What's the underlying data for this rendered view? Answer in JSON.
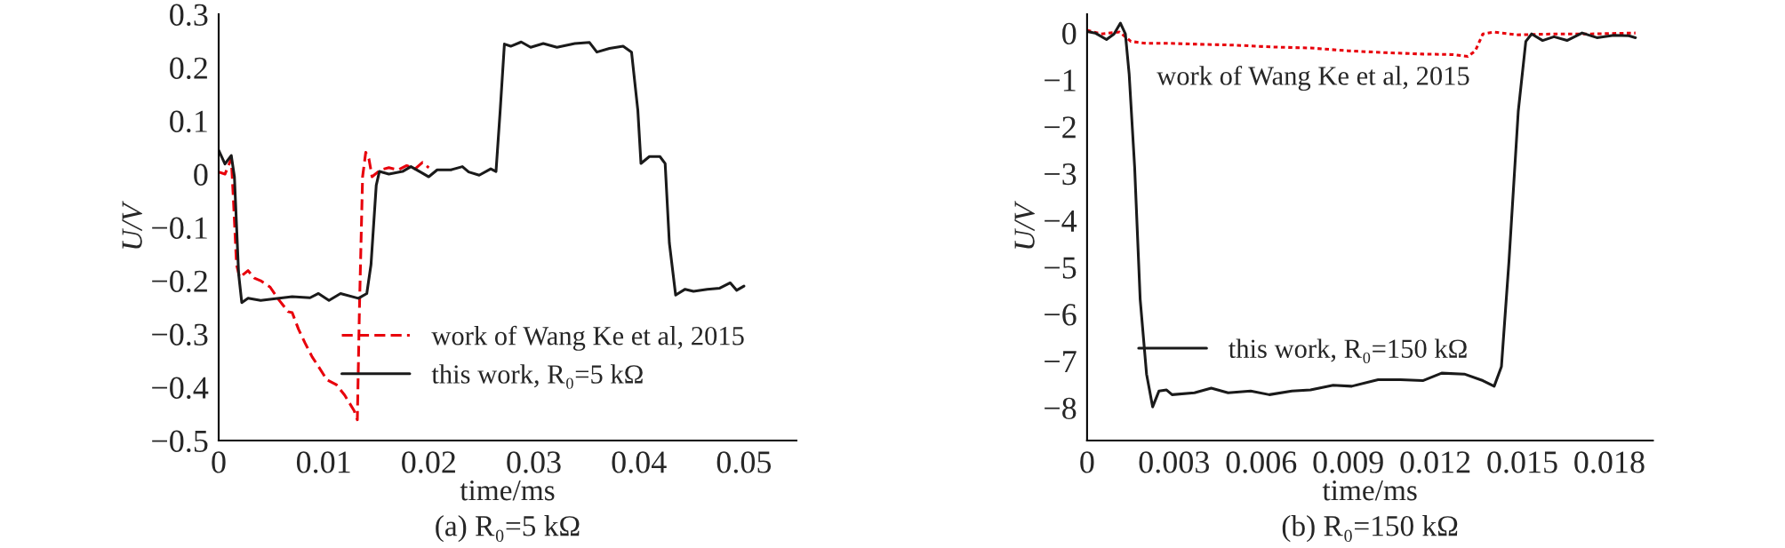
{
  "chart_data": [
    {
      "type": "line",
      "title": "(a) R₀=5 kΩ",
      "xlabel": "time/ms",
      "ylabel": "U/V",
      "xlim": [
        0,
        0.055
      ],
      "xticks": [
        0,
        0.01,
        0.02,
        0.03,
        0.04,
        0.05
      ],
      "ylim": [
        -0.5,
        0.3
      ],
      "yticks": [
        {
          "value": -0.5,
          "label": "−0.5"
        },
        {
          "value": -0.4,
          "label": "−0.4"
        },
        {
          "value": -0.3,
          "label": "−0.3"
        },
        {
          "value": -0.2,
          "label": "−0.2"
        },
        {
          "value": -0.1,
          "label": "−0.1"
        },
        0,
        0.1,
        0.2,
        0.3
      ],
      "legend": "bottom right",
      "grid": false,
      "series": [
        {
          "name": "work of Wang Ke et al, 2015",
          "color": "#e8000b",
          "line_style": "dashed",
          "x": [
            0,
            0.0006,
            0.001,
            0.0012,
            0.0014,
            0.0017,
            0.002,
            0.0028,
            0.0034,
            0.004,
            0.0049,
            0.0057,
            0.0066,
            0.007,
            0.0076,
            0.0082,
            0.0089,
            0.0095,
            0.0103,
            0.0112,
            0.012,
            0.0129,
            0.0132,
            0.0134,
            0.0137,
            0.014,
            0.0143,
            0.0146,
            0.0154,
            0.0162,
            0.0171,
            0.0179,
            0.0187,
            0.0194,
            0.02
          ],
          "values": [
            0.004,
            0,
            0.019,
            0.029,
            -0.046,
            -0.17,
            -0.194,
            -0.181,
            -0.195,
            -0.2,
            -0.212,
            -0.235,
            -0.258,
            -0.26,
            -0.291,
            -0.316,
            -0.343,
            -0.361,
            -0.386,
            -0.395,
            -0.415,
            -0.444,
            -0.461,
            -0.253,
            -0.005,
            0.041,
            0.029,
            -0.005,
            0.008,
            0.012,
            0.008,
            0.016,
            0.01,
            0.022,
            0.012
          ]
        },
        {
          "name": "this work, R₀=5 kΩ",
          "color": "#1a1a1a",
          "line_style": "solid",
          "x": [
            0,
            0.0006,
            0.0012,
            0.0015,
            0.0019,
            0.0022,
            0.0028,
            0.004,
            0.007,
            0.0087,
            0.0095,
            0.0105,
            0.0116,
            0.0133,
            0.0141,
            0.0145,
            0.015,
            0.0153,
            0.0162,
            0.0175,
            0.0183,
            0.0192,
            0.02,
            0.0208,
            0.0221,
            0.0232,
            0.0238,
            0.0248,
            0.0259,
            0.0264,
            0.0268,
            0.0272,
            0.0278,
            0.0288,
            0.0297,
            0.0309,
            0.0322,
            0.0339,
            0.0353,
            0.036,
            0.0372,
            0.0385,
            0.0393,
            0.0399,
            0.0402,
            0.041,
            0.042,
            0.0425,
            0.0429,
            0.0435,
            0.0444,
            0.0452,
            0.0465,
            0.0477,
            0.0487,
            0.0493,
            0.05
          ],
          "values": [
            0.045,
            0.019,
            0.035,
            -0.005,
            -0.187,
            -0.241,
            -0.233,
            -0.237,
            -0.23,
            -0.232,
            -0.224,
            -0.237,
            -0.224,
            -0.233,
            -0.224,
            -0.17,
            -0.021,
            0.005,
            0,
            0.005,
            0.014,
            0.004,
            -0.005,
            0.008,
            0.008,
            0.014,
            0.004,
            -0.002,
            0.01,
            0.005,
            0.12,
            0.244,
            0.24,
            0.248,
            0.238,
            0.245,
            0.238,
            0.245,
            0.247,
            0.229,
            0.236,
            0.24,
            0.229,
            0.12,
            0.02,
            0.033,
            0.033,
            0.02,
            -0.129,
            -0.227,
            -0.216,
            -0.22,
            -0.216,
            -0.214,
            -0.204,
            -0.218,
            -0.21
          ]
        }
      ]
    },
    {
      "type": "line",
      "title": "(b) R₀=150 kΩ",
      "xlabel": "time/ms",
      "ylabel": "U/V",
      "xlim": [
        0,
        0.0195
      ],
      "xticks": [
        0,
        0.003,
        0.006,
        0.009,
        0.012,
        0.015,
        0.018
      ],
      "ylim": [
        -8.7,
        0.4
      ],
      "yticks": [
        {
          "value": -8,
          "label": "−8"
        },
        {
          "value": -7,
          "label": "−7"
        },
        {
          "value": -6,
          "label": "−6"
        },
        {
          "value": -5,
          "label": "−5"
        },
        {
          "value": -4,
          "label": "−4"
        },
        {
          "value": -3,
          "label": "−3"
        },
        {
          "value": -2,
          "label": "−2"
        },
        {
          "value": -1,
          "label": "−1"
        },
        0
      ],
      "legend": "bottom left",
      "grid": false,
      "annotations": [
        "work of Wang Ke et al, 2015"
      ],
      "series": [
        {
          "color": "#e8000b",
          "line_style": "dotted",
          "x": [
            0,
            0.00048,
            0.00112,
            0.00151,
            0.00203,
            0.0028,
            0.00383,
            0.00512,
            0.00641,
            0.0077,
            0.00899,
            0.01028,
            0.01157,
            0.0126,
            0.01312,
            0.01338,
            0.01364,
            0.01403,
            0.0148,
            0.01609,
            0.01738,
            0.0189
          ],
          "values": [
            0.06,
            -0.02,
            0.02,
            -0.18,
            -0.22,
            -0.22,
            -0.24,
            -0.26,
            -0.3,
            -0.32,
            -0.38,
            -0.42,
            -0.45,
            -0.46,
            -0.5,
            -0.38,
            -0.02,
            0.02,
            -0.04,
            -0.02,
            -0.02,
            0
          ]
        },
        {
          "name": "this work, R₀=150 kΩ",
          "color": "#1a1a1a",
          "line_style": "solid",
          "x": [
            0,
            0.00028,
            0.00067,
            0.00093,
            0.00115,
            0.00132,
            0.00145,
            0.00164,
            0.00183,
            0.00205,
            0.00226,
            0.00248,
            0.00274,
            0.00293,
            0.0037,
            0.00428,
            0.00486,
            0.00564,
            0.00628,
            0.00706,
            0.0077,
            0.00848,
            0.00912,
            0.01003,
            0.0108,
            0.01157,
            0.01222,
            0.013,
            0.01364,
            0.01403,
            0.01428,
            0.01454,
            0.01486,
            0.01512,
            0.01532,
            0.0157,
            0.01609,
            0.01654,
            0.01706,
            0.01757,
            0.01815,
            0.01867,
            0.0189
          ],
          "values": [
            0.03,
            0,
            -0.14,
            -0.02,
            0.21,
            -0.02,
            -0.87,
            -2.87,
            -5.68,
            -7.28,
            -7.98,
            -7.64,
            -7.62,
            -7.72,
            -7.68,
            -7.58,
            -7.68,
            -7.64,
            -7.72,
            -7.64,
            -7.62,
            -7.52,
            -7.54,
            -7.4,
            -7.4,
            -7.42,
            -7.26,
            -7.28,
            -7.42,
            -7.54,
            -7.12,
            -4.87,
            -1.67,
            -0.18,
            -0.02,
            -0.16,
            -0.08,
            -0.16,
            0,
            -0.1,
            -0.05,
            -0.06,
            -0.1
          ]
        }
      ]
    }
  ]
}
